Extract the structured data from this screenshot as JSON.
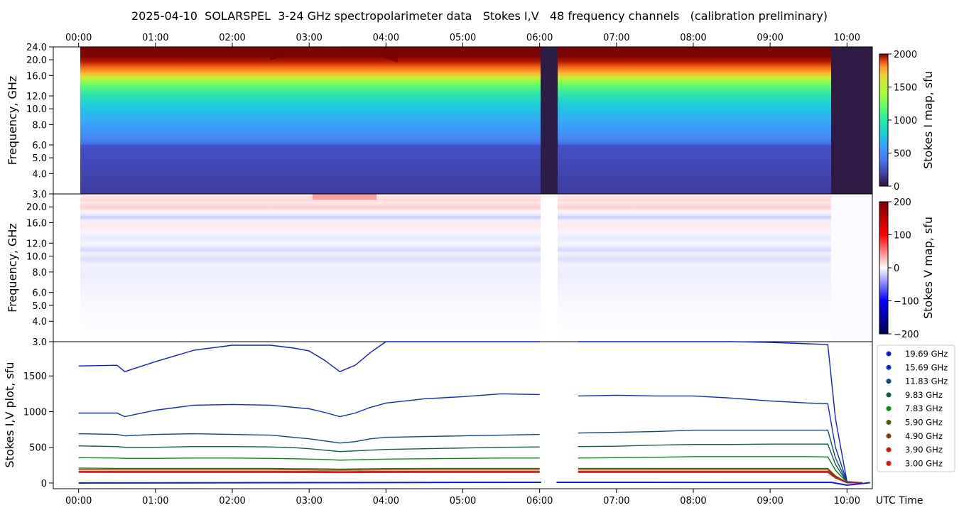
{
  "title": "2025-04-10  SOLARSPEL  3-24 GHz spectropolarimeter data   Stokes I,V   48 frequency channels   (calibration preliminary)",
  "time_axis": {
    "ticks": [
      "00:00",
      "01:00",
      "02:00",
      "03:00",
      "04:00",
      "05:00",
      "06:00",
      "07:00",
      "08:00",
      "09:00",
      "10:00"
    ],
    "tick_hours": [
      0,
      1,
      2,
      3,
      4,
      5,
      6,
      7,
      8,
      9,
      10
    ],
    "range_hours": [
      -0.33,
      10.33
    ],
    "label": "UTC Time"
  },
  "panel_i": {
    "ylabel": "Frequency, GHz",
    "yticks": [
      "3.0",
      "4.0",
      "5.0",
      "6.0",
      "8.0",
      "10.0",
      "12.0",
      "16.0",
      "20.0",
      "24.0"
    ],
    "ytick_values": [
      3,
      4,
      5,
      6,
      8,
      10,
      12,
      16,
      20,
      24
    ],
    "yrange": [
      3,
      24
    ],
    "yscale": "log",
    "colorbar": {
      "label": "Stokes I map, sfu",
      "ticks": [
        "0",
        "500",
        "1000",
        "1500",
        "2000"
      ],
      "tick_values": [
        0,
        500,
        1000,
        1500,
        2000
      ],
      "range": [
        0,
        2000
      ],
      "colormap": "turbo"
    }
  },
  "panel_v": {
    "ylabel": "Frequency, GHz",
    "yticks": [
      "3.0",
      "4.0",
      "5.0",
      "6.0",
      "8.0",
      "10.0",
      "12.0",
      "16.0",
      "20.0"
    ],
    "ytick_values": [
      3,
      4,
      5,
      6,
      8,
      10,
      12,
      16,
      20
    ],
    "yrange": [
      3,
      24
    ],
    "yscale": "log",
    "colorbar": {
      "label": "Stokes V map, sfu",
      "ticks": [
        "200",
        "100",
        "0",
        "−100",
        "−200"
      ],
      "tick_values": [
        200,
        100,
        0,
        -100,
        -200
      ],
      "range": [
        -200,
        200
      ],
      "colormap": "seismic"
    }
  },
  "legend": {
    "placement": "right",
    "entries": [
      {
        "label": "19.69 GHz",
        "color": "#0a1de0"
      },
      {
        "label": "15.69 GHz",
        "color": "#0a2ac8"
      },
      {
        "label": "11.83 GHz",
        "color": "#0b4a7a"
      },
      {
        "label": "9.83 GHz",
        "color": "#0b5e52"
      },
      {
        "label": "7.83 GHz",
        "color": "#0a8a10"
      },
      {
        "label": "5.90 GHz",
        "color": "#4a5f06"
      },
      {
        "label": "4.90 GHz",
        "color": "#7a3d06"
      },
      {
        "label": "3.90 GHz",
        "color": "#c02208"
      },
      {
        "label": "3.00 GHz",
        "color": "#f00a0a"
      }
    ]
  },
  "chart_data": {
    "type": "line",
    "ylabel": "Stokes I,V plot, sfu",
    "xlabel": "UTC Time",
    "ylim": [
      -80,
      1980
    ],
    "yticks": [
      "0",
      "500",
      "1000",
      "1500"
    ],
    "ytick_values": [
      0,
      500,
      1000,
      1500
    ],
    "x": [
      0.0,
      0.5,
      0.6,
      1.0,
      1.5,
      2.0,
      2.5,
      2.8,
      3.0,
      3.2,
      3.4,
      3.6,
      3.8,
      4.0,
      4.5,
      5.0,
      5.5,
      6.0,
      6.2,
      6.5,
      7.0,
      7.5,
      8.0,
      8.5,
      9.0,
      9.5,
      9.75,
      9.85,
      10.0,
      10.2
    ],
    "gap_hours": [
      6.02,
      6.22
    ],
    "series": [
      {
        "name": "19.69 GHz",
        "color": "#0a1de0",
        "values": [
          1640,
          1650,
          1560,
          1700,
          1860,
          1930,
          1930,
          1890,
          1850,
          1720,
          1560,
          1650,
          1830,
          1980,
          2050,
          2060,
          2060,
          2060,
          2060,
          2060,
          2060,
          2060,
          2060,
          2060,
          1970,
          1950,
          1940,
          900,
          20,
          5
        ]
      },
      {
        "name": "15.69 GHz",
        "color": "#0a2ac8",
        "values": [
          980,
          980,
          930,
          1020,
          1090,
          1100,
          1090,
          1060,
          1040,
          990,
          930,
          980,
          1060,
          1120,
          1180,
          1210,
          1250,
          1240,
          1220,
          1220,
          1230,
          1220,
          1220,
          1190,
          1150,
          1120,
          1110,
          500,
          15,
          5
        ]
      },
      {
        "name": "11.83 GHz",
        "color": "#0b4a7a",
        "values": [
          690,
          680,
          660,
          680,
          690,
          680,
          670,
          640,
          620,
          590,
          560,
          580,
          620,
          640,
          650,
          660,
          670,
          680,
          690,
          700,
          710,
          720,
          740,
          740,
          740,
          740,
          740,
          350,
          12,
          5
        ]
      },
      {
        "name": "9.83 GHz",
        "color": "#0b5e52",
        "values": [
          520,
          510,
          500,
          500,
          510,
          510,
          505,
          495,
          480,
          460,
          440,
          450,
          460,
          470,
          480,
          490,
          500,
          505,
          505,
          510,
          515,
          530,
          540,
          540,
          545,
          545,
          545,
          260,
          10,
          5
        ]
      },
      {
        "name": "7.83 GHz",
        "color": "#0a8a10",
        "values": [
          355,
          350,
          345,
          345,
          350,
          350,
          345,
          340,
          335,
          330,
          320,
          325,
          330,
          335,
          340,
          345,
          350,
          350,
          350,
          350,
          355,
          360,
          370,
          370,
          370,
          370,
          365,
          180,
          8,
          5
        ]
      },
      {
        "name": "5.90 GHz",
        "color": "#4a5f06",
        "values": [
          210,
          205,
          205,
          205,
          205,
          205,
          205,
          200,
          200,
          198,
          195,
          197,
          200,
          202,
          205,
          205,
          205,
          205,
          205,
          205,
          205,
          205,
          205,
          205,
          205,
          205,
          205,
          100,
          6,
          5
        ]
      },
      {
        "name": "4.90 GHz",
        "color": "#7a3d06",
        "values": [
          190,
          185,
          185,
          185,
          185,
          185,
          185,
          183,
          182,
          180,
          180,
          181,
          182,
          183,
          185,
          185,
          185,
          185,
          185,
          185,
          185,
          185,
          185,
          185,
          185,
          185,
          185,
          90,
          5,
          4
        ]
      },
      {
        "name": "3.90 GHz",
        "color": "#c02208",
        "values": [
          165,
          163,
          163,
          163,
          163,
          163,
          163,
          162,
          162,
          161,
          160,
          161,
          162,
          162,
          163,
          163,
          163,
          163,
          163,
          163,
          163,
          163,
          163,
          163,
          163,
          163,
          163,
          80,
          4,
          3
        ]
      },
      {
        "name": "3.00 GHz",
        "color": "#f00a0a",
        "values": [
          148,
          147,
          147,
          147,
          147,
          147,
          147,
          146,
          146,
          146,
          145,
          146,
          146,
          147,
          147,
          147,
          147,
          147,
          147,
          147,
          147,
          147,
          147,
          147,
          147,
          147,
          147,
          70,
          3,
          2
        ]
      }
    ]
  }
}
